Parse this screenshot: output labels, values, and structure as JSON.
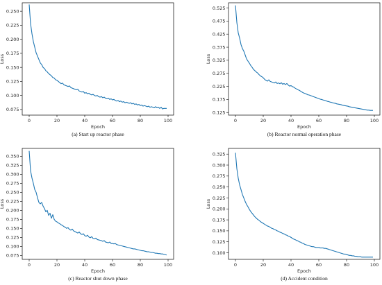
{
  "chart_data": [
    {
      "type": "line",
      "caption": "(a) Start up reactor phase",
      "xlabel": "Epoch",
      "ylabel": "Loss",
      "xlim": [
        -5,
        104
      ],
      "ylim": [
        0.065,
        0.265
      ],
      "xticks": [
        0,
        20,
        40,
        60,
        80,
        100
      ],
      "yticks": [
        0.075,
        0.1,
        0.125,
        0.15,
        0.175,
        0.2,
        0.225,
        0.25
      ],
      "ytick_labels": [
        "0.075",
        "0.100",
        "0.125",
        "0.150",
        "0.175",
        "0.200",
        "0.225",
        "0.250"
      ],
      "color": "#1f77b4",
      "x": [
        0,
        1,
        2,
        3,
        4,
        5,
        6,
        7,
        8,
        9,
        10,
        11,
        12,
        13,
        14,
        15,
        16,
        17,
        18,
        19,
        20,
        21,
        22,
        23,
        24,
        25,
        26,
        27,
        28,
        29,
        30,
        31,
        32,
        33,
        34,
        35,
        36,
        37,
        38,
        39,
        40,
        41,
        42,
        43,
        44,
        45,
        46,
        47,
        48,
        49,
        50,
        51,
        52,
        53,
        54,
        55,
        56,
        57,
        58,
        59,
        60,
        61,
        62,
        63,
        64,
        65,
        66,
        67,
        68,
        69,
        70,
        71,
        72,
        73,
        74,
        75,
        76,
        77,
        78,
        79,
        80,
        81,
        82,
        83,
        84,
        85,
        86,
        87,
        88,
        89,
        90,
        91,
        92,
        93,
        94,
        95,
        96,
        97,
        98,
        99
      ],
      "y": [
        0.262,
        0.228,
        0.21,
        0.196,
        0.186,
        0.176,
        0.17,
        0.164,
        0.158,
        0.155,
        0.15,
        0.148,
        0.144,
        0.142,
        0.139,
        0.137,
        0.135,
        0.132,
        0.131,
        0.128,
        0.127,
        0.125,
        0.123,
        0.121,
        0.122,
        0.119,
        0.118,
        0.117,
        0.116,
        0.117,
        0.114,
        0.113,
        0.112,
        0.111,
        0.11,
        0.111,
        0.108,
        0.107,
        0.106,
        0.107,
        0.104,
        0.105,
        0.103,
        0.104,
        0.102,
        0.101,
        0.102,
        0.1,
        0.099,
        0.1,
        0.098,
        0.097,
        0.098,
        0.096,
        0.097,
        0.095,
        0.094,
        0.095,
        0.093,
        0.094,
        0.092,
        0.093,
        0.091,
        0.09,
        0.091,
        0.089,
        0.09,
        0.088,
        0.089,
        0.087,
        0.088,
        0.087,
        0.086,
        0.087,
        0.085,
        0.086,
        0.084,
        0.085,
        0.083,
        0.084,
        0.082,
        0.083,
        0.081,
        0.082,
        0.081,
        0.08,
        0.081,
        0.079,
        0.08,
        0.079,
        0.078,
        0.08,
        0.078,
        0.079,
        0.077,
        0.079,
        0.076,
        0.077,
        0.077,
        0.077
      ]
    },
    {
      "type": "line",
      "caption": "(b) Reactor normal operation phase",
      "xlabel": "Epoch",
      "ylabel": "Loss",
      "xlim": [
        -5,
        104
      ],
      "ylim": [
        0.115,
        0.545
      ],
      "xticks": [
        0,
        20,
        40,
        60,
        80,
        100
      ],
      "yticks": [
        0.125,
        0.175,
        0.225,
        0.275,
        0.325,
        0.375,
        0.425,
        0.475,
        0.525
      ],
      "ytick_labels": [
        "0.125",
        "0.175",
        "0.225",
        "0.275",
        "0.325",
        "0.375",
        "0.425",
        "0.475",
        "0.525"
      ],
      "color": "#1f77b4",
      "x": [
        0,
        1,
        2,
        3,
        4,
        5,
        6,
        7,
        8,
        9,
        10,
        11,
        12,
        13,
        14,
        15,
        16,
        17,
        18,
        19,
        20,
        21,
        22,
        23,
        24,
        25,
        26,
        27,
        28,
        29,
        30,
        31,
        32,
        33,
        34,
        35,
        36,
        37,
        38,
        39,
        40,
        41,
        42,
        43,
        44,
        45,
        46,
        47,
        48,
        49,
        50,
        51,
        52,
        53,
        54,
        55,
        56,
        57,
        58,
        59,
        60,
        61,
        62,
        63,
        64,
        65,
        66,
        67,
        68,
        69,
        70,
        71,
        72,
        73,
        74,
        75,
        76,
        77,
        78,
        79,
        80,
        81,
        82,
        83,
        84,
        85,
        86,
        87,
        88,
        89,
        90,
        91,
        92,
        93,
        94,
        95,
        96,
        97,
        98,
        99
      ],
      "y": [
        0.535,
        0.47,
        0.43,
        0.41,
        0.385,
        0.37,
        0.36,
        0.345,
        0.33,
        0.322,
        0.314,
        0.305,
        0.298,
        0.29,
        0.285,
        0.28,
        0.276,
        0.27,
        0.265,
        0.262,
        0.258,
        0.252,
        0.248,
        0.245,
        0.25,
        0.244,
        0.242,
        0.24,
        0.238,
        0.242,
        0.236,
        0.238,
        0.235,
        0.239,
        0.233,
        0.236,
        0.232,
        0.236,
        0.23,
        0.226,
        0.228,
        0.224,
        0.222,
        0.218,
        0.215,
        0.212,
        0.21,
        0.206,
        0.203,
        0.2,
        0.198,
        0.196,
        0.193,
        0.192,
        0.19,
        0.188,
        0.186,
        0.184,
        0.182,
        0.18,
        0.178,
        0.176,
        0.175,
        0.173,
        0.172,
        0.17,
        0.168,
        0.167,
        0.165,
        0.164,
        0.162,
        0.161,
        0.16,
        0.158,
        0.157,
        0.156,
        0.155,
        0.153,
        0.152,
        0.151,
        0.15,
        0.149,
        0.147,
        0.146,
        0.145,
        0.144,
        0.143,
        0.142,
        0.141,
        0.14,
        0.139,
        0.138,
        0.137,
        0.136,
        0.135,
        0.134,
        0.134,
        0.133,
        0.133,
        0.133
      ]
    },
    {
      "type": "line",
      "caption": "(c) Reactor shut down phase",
      "xlabel": "Epoch",
      "ylabel": "Loss",
      "xlim": [
        -5,
        104
      ],
      "ylim": [
        0.064,
        0.372
      ],
      "xticks": [
        0,
        20,
        40,
        60,
        80,
        100
      ],
      "yticks": [
        0.075,
        0.1,
        0.125,
        0.15,
        0.175,
        0.2,
        0.225,
        0.25,
        0.275,
        0.3,
        0.325,
        0.35
      ],
      "ytick_labels": [
        "0.075",
        "0.100",
        "0.125",
        "0.150",
        "0.175",
        "0.200",
        "0.225",
        "0.250",
        "0.275",
        "0.300",
        "0.325",
        "0.350"
      ],
      "color": "#1f77b4",
      "x": [
        0,
        1,
        2,
        3,
        4,
        5,
        6,
        7,
        8,
        9,
        10,
        11,
        12,
        13,
        14,
        15,
        16,
        17,
        18,
        19,
        20,
        21,
        22,
        23,
        24,
        25,
        26,
        27,
        28,
        29,
        30,
        31,
        32,
        33,
        34,
        35,
        36,
        37,
        38,
        39,
        40,
        41,
        42,
        43,
        44,
        45,
        46,
        47,
        48,
        49,
        50,
        51,
        52,
        53,
        54,
        55,
        56,
        57,
        58,
        59,
        60,
        61,
        62,
        63,
        64,
        65,
        66,
        67,
        68,
        69,
        70,
        71,
        72,
        73,
        74,
        75,
        76,
        77,
        78,
        79,
        80,
        81,
        82,
        83,
        84,
        85,
        86,
        87,
        88,
        89,
        90,
        91,
        92,
        93,
        94,
        95,
        96,
        97,
        98,
        99
      ],
      "y": [
        0.365,
        0.31,
        0.29,
        0.275,
        0.258,
        0.25,
        0.235,
        0.222,
        0.218,
        0.222,
        0.212,
        0.205,
        0.196,
        0.2,
        0.186,
        0.192,
        0.178,
        0.188,
        0.175,
        0.17,
        0.168,
        0.165,
        0.163,
        0.16,
        0.158,
        0.155,
        0.153,
        0.15,
        0.152,
        0.147,
        0.145,
        0.148,
        0.143,
        0.141,
        0.139,
        0.137,
        0.14,
        0.135,
        0.133,
        0.135,
        0.13,
        0.128,
        0.131,
        0.126,
        0.124,
        0.127,
        0.122,
        0.121,
        0.123,
        0.119,
        0.118,
        0.117,
        0.116,
        0.114,
        0.116,
        0.112,
        0.111,
        0.11,
        0.112,
        0.108,
        0.108,
        0.107,
        0.108,
        0.105,
        0.104,
        0.103,
        0.102,
        0.101,
        0.1,
        0.099,
        0.098,
        0.097,
        0.096,
        0.095,
        0.094,
        0.093,
        0.093,
        0.092,
        0.091,
        0.09,
        0.089,
        0.088,
        0.088,
        0.087,
        0.086,
        0.085,
        0.085,
        0.084,
        0.083,
        0.083,
        0.082,
        0.081,
        0.081,
        0.08,
        0.08,
        0.079,
        0.079,
        0.078,
        0.077,
        0.076
      ]
    },
    {
      "type": "line",
      "caption": "(d) Accident condition",
      "xlabel": "Epoch",
      "ylabel": "Loss",
      "xlim": [
        -5,
        104
      ],
      "ylim": [
        0.085,
        0.338
      ],
      "xticks": [
        0,
        20,
        40,
        60,
        80,
        100
      ],
      "yticks": [
        0.1,
        0.125,
        0.15,
        0.175,
        0.2,
        0.225,
        0.25,
        0.275,
        0.3,
        0.325
      ],
      "ytick_labels": [
        "0.100",
        "0.125",
        "0.150",
        "0.175",
        "0.200",
        "0.225",
        "0.250",
        "0.275",
        "0.300",
        "0.325"
      ],
      "color": "#1f77b4",
      "x": [
        0,
        1,
        2,
        3,
        4,
        5,
        6,
        7,
        8,
        9,
        10,
        11,
        12,
        13,
        14,
        15,
        16,
        17,
        18,
        19,
        20,
        21,
        22,
        23,
        24,
        25,
        26,
        27,
        28,
        29,
        30,
        31,
        32,
        33,
        34,
        35,
        36,
        37,
        38,
        39,
        40,
        41,
        42,
        43,
        44,
        45,
        46,
        47,
        48,
        49,
        50,
        51,
        52,
        53,
        54,
        55,
        56,
        57,
        58,
        59,
        60,
        61,
        62,
        63,
        64,
        65,
        66,
        67,
        68,
        69,
        70,
        71,
        72,
        73,
        74,
        75,
        76,
        77,
        78,
        79,
        80,
        81,
        82,
        83,
        84,
        85,
        86,
        87,
        88,
        89,
        90,
        91,
        92,
        93,
        94,
        95,
        96,
        97,
        98,
        99
      ],
      "y": [
        0.328,
        0.292,
        0.27,
        0.255,
        0.244,
        0.233,
        0.225,
        0.217,
        0.21,
        0.205,
        0.199,
        0.194,
        0.19,
        0.186,
        0.182,
        0.179,
        0.176,
        0.174,
        0.171,
        0.169,
        0.167,
        0.165,
        0.163,
        0.161,
        0.16,
        0.158,
        0.156,
        0.155,
        0.153,
        0.152,
        0.15,
        0.149,
        0.147,
        0.146,
        0.144,
        0.143,
        0.141,
        0.14,
        0.138,
        0.137,
        0.135,
        0.133,
        0.131,
        0.13,
        0.128,
        0.127,
        0.125,
        0.124,
        0.122,
        0.121,
        0.119,
        0.118,
        0.117,
        0.116,
        0.115,
        0.114,
        0.114,
        0.113,
        0.112,
        0.112,
        0.112,
        0.111,
        0.111,
        0.111,
        0.11,
        0.11,
        0.109,
        0.108,
        0.107,
        0.106,
        0.105,
        0.104,
        0.103,
        0.102,
        0.101,
        0.1,
        0.099,
        0.098,
        0.097,
        0.097,
        0.096,
        0.095,
        0.094,
        0.094,
        0.093,
        0.093,
        0.092,
        0.092,
        0.091,
        0.091,
        0.091,
        0.09,
        0.09,
        0.09,
        0.09,
        0.09,
        0.09,
        0.09,
        0.09,
        0.09
      ]
    }
  ]
}
